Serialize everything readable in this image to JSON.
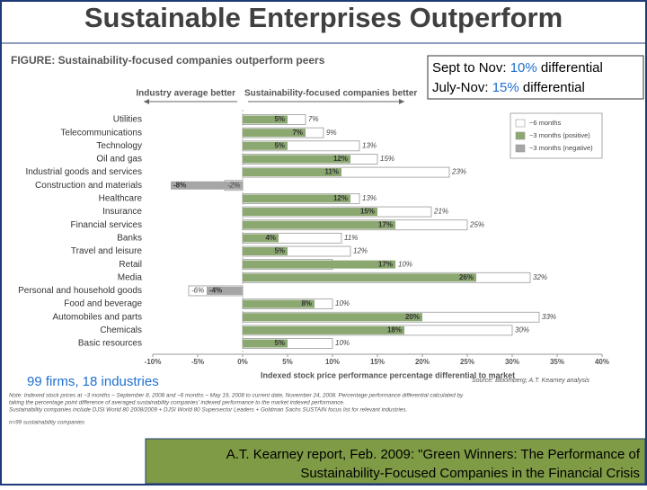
{
  "slide": {
    "title": "Sustainable Enterprises Outperform",
    "callout": [
      [
        "Sept to Nov: ",
        "10%",
        " differential"
      ],
      [
        "July-Nov: ",
        "15%",
        " differential"
      ]
    ],
    "firms_note": "99 firms, 18 industries",
    "footer": [
      "A.T. Kearney report, Feb. 2009: \"Green Winners: The Performance of",
      "Sustainability-Focused Companies in the Financial Crisis"
    ]
  },
  "chart_data": {
    "type": "hbar",
    "title": "FIGURE: Sustainability-focused companies outperform peers",
    "left_header": "Industry average better",
    "right_header": "Sustainability-focused companies better",
    "x_label": "Indexed stock price performance percentage differential to market",
    "source": "Source: Bloomberg; A.T. Kearney analysis",
    "notes": [
      "Note: Indexed stock prices at ~3 months – September 8, 2008 and ~6 months – May 19, 2008 to current date, November 24, 2008. Percentage performance differential calculated by",
      "taking the percentage point difference of averaged sustainability companies' indexed performance to the market indexed performance.",
      "Sustainability companies include DJSI World 80 2008/2009 + DJSI World 80 Supersector Leaders + Goldman Sachs SUSTAIN focus list for relevant industries."
    ],
    "sample_note": "n=99 sustainability companies",
    "categories": [
      "Utilities",
      "Telecommunications",
      "Technology",
      "Oil and gas",
      "Industrial goods and services",
      "Construction and materials",
      "Healthcare",
      "Insurance",
      "Financial services",
      "Banks",
      "Travel and leisure",
      "Retail",
      "Media",
      "Personal and household goods",
      "Food and beverage",
      "Automobiles and parts",
      "Chemicals",
      "Basic resources"
    ],
    "series": [
      {
        "name": "~6 months",
        "color": "#ffffff",
        "values": [
          7,
          9,
          13,
          15,
          23,
          -2,
          13,
          21,
          25,
          11,
          12,
          10,
          32,
          -6,
          10,
          33,
          30,
          10
        ],
        "value_labels": [
          "7%",
          "9%",
          "13%",
          "15%",
          "23%",
          "-2%",
          "13%",
          "21%",
          "25%",
          "11%",
          "12%",
          "10%",
          "32%",
          "-6%",
          "10%",
          "33%",
          "30%",
          "10%"
        ]
      },
      {
        "name": "~3 months (positive)",
        "color": "#8ba870",
        "negative_name": "~3 months (negative)",
        "negative_color": "#a6a6a6",
        "values": [
          5,
          7,
          5,
          12,
          11,
          -8,
          12,
          15,
          17,
          4,
          5,
          17,
          26,
          -4,
          8,
          20,
          18,
          5
        ],
        "value_labels": [
          "5%",
          "7%",
          "5%",
          "12%",
          "11%",
          "-8%",
          "12%",
          "15%",
          "17%",
          "4%",
          "5%",
          "17%",
          "26%",
          "-4%",
          "8%",
          "20%",
          "18%",
          "5%"
        ]
      }
    ],
    "xlim": [
      -10,
      40
    ],
    "xticks": [
      {
        "value": -10,
        "label": "-10%"
      },
      {
        "value": -5,
        "label": "-5%"
      },
      {
        "value": 0,
        "label": "0%"
      },
      {
        "value": 5,
        "label": "5%"
      },
      {
        "value": 10,
        "label": "10%"
      },
      {
        "value": 15,
        "label": "15%"
      },
      {
        "value": 20,
        "label": "20%"
      },
      {
        "value": 25,
        "label": "25%"
      },
      {
        "value": 30,
        "label": "30%"
      },
      {
        "value": 35,
        "label": "35%"
      },
      {
        "value": 40,
        "label": "40%"
      }
    ],
    "grid": false
  }
}
